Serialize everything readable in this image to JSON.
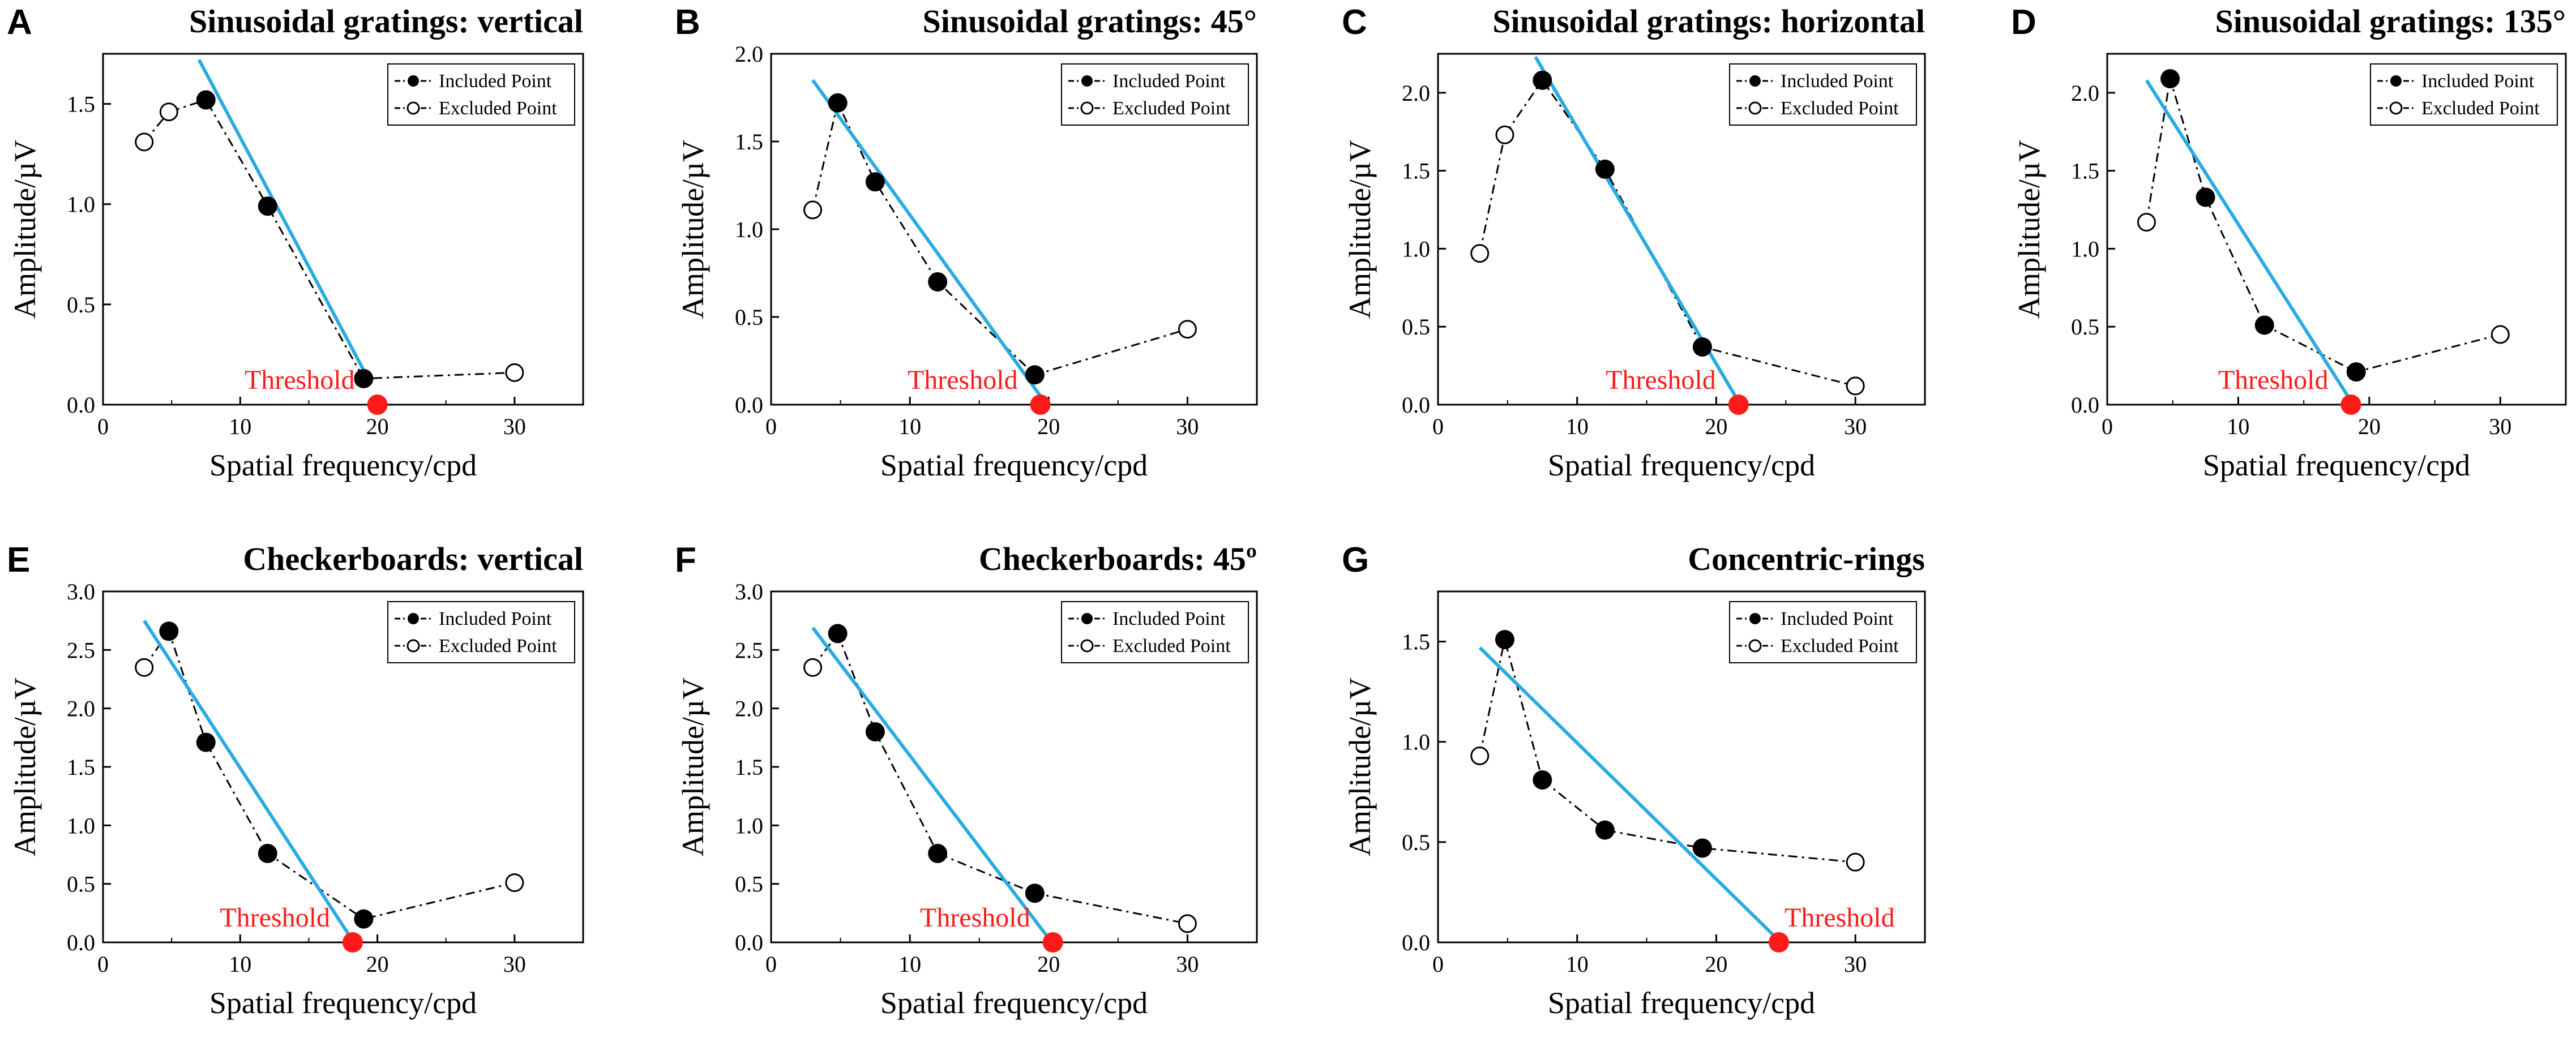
{
  "legend": {
    "included": "Included Point",
    "excluded": "Excluded Point"
  },
  "common": {
    "xlabel": "Spatial frequency/cpd",
    "ylabel": "Amplitude/µV",
    "threshold_label": "Threshold",
    "x_ticks": [
      "0",
      "10",
      "20",
      "30"
    ]
  },
  "colors": {
    "fit_line": "#29abe2",
    "threshold": "#ff1a1a",
    "axis": "#000000"
  },
  "chart_data": [
    {
      "type": "line",
      "panel": "A",
      "title": "Sinusoidal gratings: vertical",
      "xlim": [
        0,
        35
      ],
      "ylim": [
        0,
        1.75
      ],
      "y_ticks": [
        0,
        0.5,
        1.0,
        1.5
      ],
      "y_tick_labels": [
        "0.0",
        "0.5",
        "1.0",
        "1.5"
      ],
      "included": [
        [
          7.5,
          1.52
        ],
        [
          12,
          0.99
        ],
        [
          19,
          0.13
        ]
      ],
      "excluded": [
        [
          3,
          1.31
        ],
        [
          4.8,
          1.46
        ],
        [
          30,
          0.16
        ]
      ],
      "fit_line": [
        [
          7.0,
          1.72
        ],
        [
          19.4,
          0.12
        ]
      ],
      "threshold": 20
    },
    {
      "type": "line",
      "panel": "B",
      "title": "Sinusoidal gratings: 45°",
      "xlim": [
        0,
        35
      ],
      "ylim": [
        0,
        2.0
      ],
      "y_ticks": [
        0,
        0.5,
        1.0,
        1.5,
        2.0
      ],
      "y_tick_labels": [
        "0.0",
        "0.5",
        "1.0",
        "1.5",
        "2.0"
      ],
      "included": [
        [
          4.8,
          1.72
        ],
        [
          7.5,
          1.27
        ],
        [
          12,
          0.7
        ],
        [
          19,
          0.17
        ]
      ],
      "excluded": [
        [
          3,
          1.11
        ],
        [
          30,
          0.43
        ]
      ],
      "fit_line": [
        [
          3.0,
          1.85
        ],
        [
          19.4,
          0.05
        ]
      ],
      "threshold": 19.4
    },
    {
      "type": "line",
      "panel": "C",
      "title": "Sinusoidal gratings: horizontal",
      "xlim": [
        0,
        35
      ],
      "ylim": [
        0,
        2.25
      ],
      "y_ticks": [
        0,
        0.5,
        1.0,
        1.5,
        2.0
      ],
      "y_tick_labels": [
        "0.0",
        "0.5",
        "1.0",
        "1.5",
        "2.0"
      ],
      "included": [
        [
          7.5,
          2.08
        ],
        [
          12,
          1.51
        ],
        [
          19,
          0.37
        ]
      ],
      "excluded": [
        [
          3,
          0.97
        ],
        [
          4.8,
          1.73
        ],
        [
          30,
          0.12
        ]
      ],
      "fit_line": [
        [
          7.0,
          2.23
        ],
        [
          21.4,
          0.05
        ]
      ],
      "threshold": 21.6
    },
    {
      "type": "line",
      "panel": "D",
      "title": "Sinusoidal gratings: 135°",
      "xlim": [
        0,
        35
      ],
      "ylim": [
        0,
        2.25
      ],
      "y_ticks": [
        0,
        0.5,
        1.0,
        1.5,
        2.0
      ],
      "y_tick_labels": [
        "0.0",
        "0.5",
        "1.0",
        "1.5",
        "2.0"
      ],
      "included": [
        [
          4.8,
          2.09
        ],
        [
          7.5,
          1.33
        ],
        [
          12,
          0.51
        ],
        [
          19,
          0.21
        ]
      ],
      "excluded": [
        [
          3,
          1.17
        ],
        [
          30,
          0.45
        ]
      ],
      "fit_line": [
        [
          3.0,
          2.08
        ],
        [
          18.4,
          0.05
        ]
      ],
      "threshold": 18.6
    },
    {
      "type": "line",
      "panel": "E",
      "title": "Checkerboards: vertical",
      "xlim": [
        0,
        35
      ],
      "ylim": [
        0,
        3.0
      ],
      "y_ticks": [
        0,
        0.5,
        1.0,
        1.5,
        2.0,
        2.5,
        3.0
      ],
      "y_tick_labels": [
        "0.0",
        "0.5",
        "1.0",
        "1.5",
        "2.0",
        "2.5",
        "3.0"
      ],
      "included": [
        [
          4.8,
          2.66
        ],
        [
          7.5,
          1.71
        ],
        [
          12,
          0.76
        ],
        [
          19,
          0.2
        ]
      ],
      "excluded": [
        [
          3,
          2.35
        ],
        [
          30,
          0.51
        ]
      ],
      "fit_line": [
        [
          3.0,
          2.75
        ],
        [
          18.0,
          0.05
        ]
      ],
      "threshold": 18.2
    },
    {
      "type": "line",
      "panel": "F",
      "title": "Checkerboards: 45º",
      "xlim": [
        0,
        35
      ],
      "ylim": [
        0,
        3.0
      ],
      "y_ticks": [
        0,
        0.5,
        1.0,
        1.5,
        2.0,
        2.5,
        3.0
      ],
      "y_tick_labels": [
        "0.0",
        "0.5",
        "1.0",
        "1.5",
        "2.0",
        "2.5",
        "3.0"
      ],
      "included": [
        [
          4.8,
          2.64
        ],
        [
          7.5,
          1.8
        ],
        [
          12,
          0.76
        ],
        [
          19,
          0.42
        ]
      ],
      "excluded": [
        [
          3,
          2.35
        ],
        [
          30,
          0.16
        ]
      ],
      "fit_line": [
        [
          3.0,
          2.69
        ],
        [
          19.9,
          0.05
        ]
      ],
      "threshold": 20.3
    },
    {
      "type": "line",
      "panel": "G",
      "title": "Concentric-rings",
      "xlim": [
        0,
        35
      ],
      "ylim": [
        0,
        1.75
      ],
      "y_ticks": [
        0,
        0.5,
        1.0,
        1.5
      ],
      "y_tick_labels": [
        "0.0",
        "0.5",
        "1.0",
        "1.5"
      ],
      "included": [
        [
          4.8,
          1.51
        ],
        [
          7.5,
          0.81
        ],
        [
          12,
          0.56
        ],
        [
          19,
          0.47
        ]
      ],
      "excluded": [
        [
          3,
          0.93
        ],
        [
          30,
          0.4
        ]
      ],
      "fit_line": [
        [
          3.0,
          1.47
        ],
        [
          24.2,
          0.03
        ]
      ],
      "threshold": 24.5
    }
  ]
}
